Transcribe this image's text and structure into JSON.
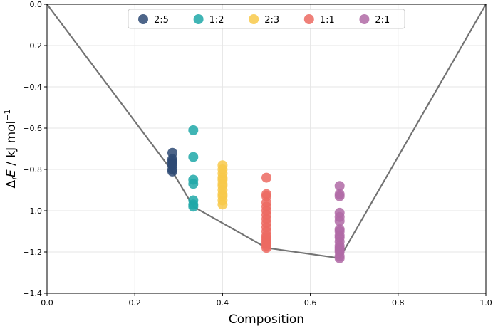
{
  "chart_data": {
    "type": "scatter",
    "xlabel": "Composition",
    "ylabel_parts": {
      "delta": "Δ",
      "sub": "f",
      "E": "E",
      "unit": " / kJ mol",
      "sup": "−1"
    },
    "xlim": [
      0.0,
      1.0
    ],
    "ylim": [
      -1.4,
      0.0
    ],
    "x_ticks": [
      0.0,
      0.2,
      0.4,
      0.6,
      0.8,
      1.0
    ],
    "x_tick_labels": [
      "0.0",
      "0.2",
      "0.4",
      "0.6",
      "0.8",
      "1.0"
    ],
    "y_ticks": [
      0.0,
      -0.2,
      -0.4,
      -0.6,
      -0.8,
      -1.0,
      -1.2,
      -1.4
    ],
    "y_tick_labels": [
      "0.0",
      "−0.2",
      "−0.4",
      "−0.6",
      "−0.8",
      "−1.0",
      "−1.2",
      "−1.4"
    ],
    "grid": true,
    "legend_position": "top-center",
    "series": [
      {
        "name": "2:5",
        "color": "#2e4a74",
        "x": [
          0.2857,
          0.2857,
          0.2857,
          0.2857,
          0.2857,
          0.2857,
          0.2857
        ],
        "y": [
          -0.72,
          -0.75,
          -0.76,
          -0.77,
          -0.78,
          -0.8,
          -0.81
        ]
      },
      {
        "name": "1:2",
        "color": "#1fa8a8",
        "x": [
          0.3333,
          0.3333,
          0.3333,
          0.3333,
          0.3333,
          0.3333,
          0.3333
        ],
        "y": [
          -0.61,
          -0.74,
          -0.85,
          -0.87,
          -0.95,
          -0.97,
          -0.98
        ]
      },
      {
        "name": "2:3",
        "color": "#f8c94a",
        "x": [
          0.4,
          0.4,
          0.4,
          0.4,
          0.4,
          0.4,
          0.4,
          0.4,
          0.4,
          0.4,
          0.4,
          0.4
        ],
        "y": [
          -0.78,
          -0.8,
          -0.82,
          -0.84,
          -0.85,
          -0.87,
          -0.88,
          -0.9,
          -0.92,
          -0.93,
          -0.95,
          -0.97
        ]
      },
      {
        "name": "1:1",
        "color": "#ec6a62",
        "x": [
          0.5,
          0.5,
          0.5,
          0.5,
          0.5,
          0.5,
          0.5,
          0.5,
          0.5,
          0.5,
          0.5,
          0.5,
          0.5,
          0.5,
          0.5,
          0.5,
          0.5,
          0.5
        ],
        "y": [
          -0.84,
          -0.92,
          -0.93,
          -0.96,
          -0.98,
          -1.0,
          -1.02,
          -1.04,
          -1.06,
          -1.08,
          -1.1,
          -1.12,
          -1.13,
          -1.14,
          -1.15,
          -1.16,
          -1.17,
          -1.18
        ]
      },
      {
        "name": "2:1",
        "color": "#b06aa6",
        "x": [
          0.6667,
          0.6667,
          0.6667,
          0.6667,
          0.6667,
          0.6667,
          0.6667,
          0.6667,
          0.6667,
          0.6667,
          0.6667,
          0.6667,
          0.6667,
          0.6667,
          0.6667,
          0.6667,
          0.6667
        ],
        "y": [
          -0.88,
          -0.92,
          -0.93,
          -1.01,
          -1.03,
          -1.05,
          -1.09,
          -1.1,
          -1.12,
          -1.13,
          -1.15,
          -1.17,
          -1.18,
          -1.19,
          -1.2,
          -1.22,
          -1.23
        ]
      }
    ],
    "hull": {
      "color": "#737373",
      "x": [
        0.0,
        0.2857,
        0.3333,
        0.5,
        0.6667,
        1.0
      ],
      "y": [
        0.0,
        -0.81,
        -0.98,
        -1.18,
        -1.23,
        0.0
      ]
    }
  }
}
